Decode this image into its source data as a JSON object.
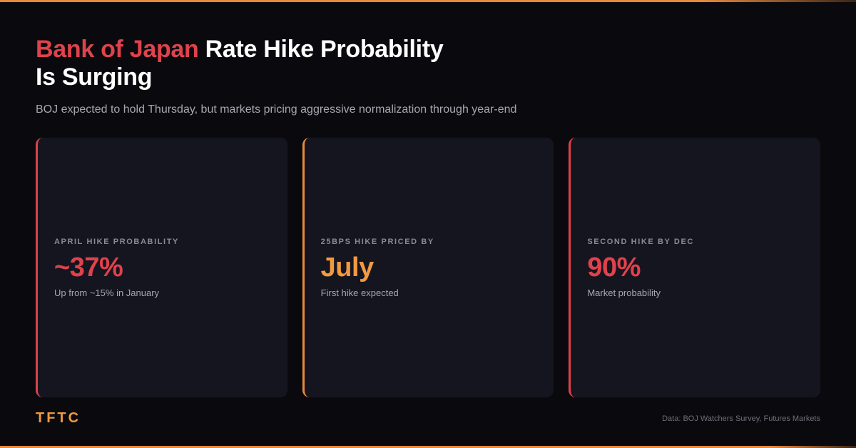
{
  "headline": {
    "accent": "Bank of Japan",
    "rest_line1": " Rate Hike Probability",
    "line2": "Is Surging"
  },
  "subtitle": "BOJ expected to hold Thursday, but markets pricing aggressive normalization through year-end",
  "cards": [
    {
      "label": "APRIL HIKE PROBABILITY",
      "value": "~37%",
      "note": "Up from ~15% in January",
      "accent_color": "#e0424c"
    },
    {
      "label": "25BPS HIKE PRICED BY",
      "value": "July",
      "note": "First hike expected",
      "accent_color": "#e78a3c"
    },
    {
      "label": "SECOND HIKE BY DEC",
      "value": "90%",
      "note": "Market probability",
      "accent_color": "#e0424c"
    }
  ],
  "footer": {
    "brand": "TFTC",
    "source": "Data: BOJ Watchers Survey, Futures Markets"
  },
  "colors": {
    "background": "#0a0a0e",
    "red_accent": "#e0424c",
    "orange_accent": "#e78a3c",
    "card_bg": "#151520"
  }
}
